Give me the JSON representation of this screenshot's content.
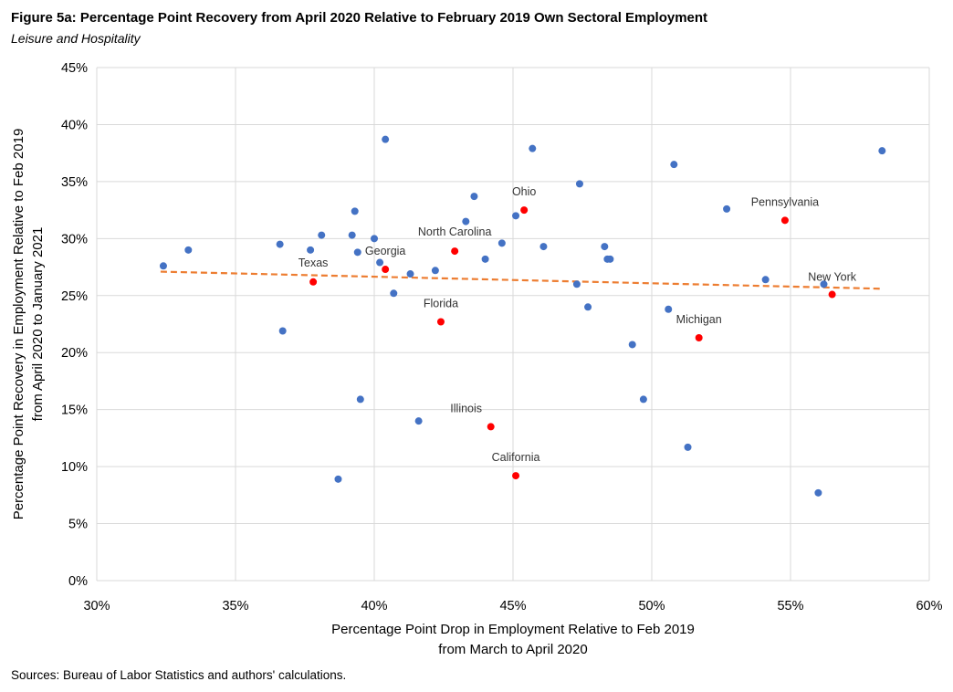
{
  "title": "Figure 5a: Percentage Point Recovery from April 2020 Relative to February 2019 Own Sectoral Employment",
  "subtitle": "Leisure and Hospitality",
  "source": "Sources: Bureau of Labor Statistics and authors' calculations.",
  "chart_data": {
    "type": "scatter",
    "xlabel": [
      "Percentage Point Drop in Employment Relative to Feb 2019",
      "from March to April 2020"
    ],
    "ylabel": [
      "Percentage Point Recovery in Employment Relative to Feb 2019",
      "from April 2020 to January 2021"
    ],
    "xlim": [
      0.3,
      0.6
    ],
    "ylim": [
      0.0,
      0.45
    ],
    "x_ticks": [
      0.3,
      0.35,
      0.4,
      0.45,
      0.5,
      0.55,
      0.6
    ],
    "x_tick_labels": [
      "30%",
      "35%",
      "40%",
      "45%",
      "50%",
      "55%",
      "60%"
    ],
    "y_ticks": [
      0.0,
      0.05,
      0.1,
      0.15,
      0.2,
      0.25,
      0.3,
      0.35,
      0.4,
      0.45
    ],
    "y_tick_labels": [
      "0%",
      "5%",
      "10%",
      "15%",
      "20%",
      "25%",
      "30%",
      "35%",
      "40%",
      "45%"
    ],
    "grid": true,
    "colors": {
      "other": "#4472C4",
      "highlight": "#FF0000",
      "trend": "#ED7D31",
      "grid": "#D9D9D9"
    },
    "other_states": [
      {
        "x": 0.324,
        "y": 0.276
      },
      {
        "x": 0.333,
        "y": 0.29
      },
      {
        "x": 0.366,
        "y": 0.295
      },
      {
        "x": 0.367,
        "y": 0.219
      },
      {
        "x": 0.377,
        "y": 0.29
      },
      {
        "x": 0.381,
        "y": 0.303
      },
      {
        "x": 0.387,
        "y": 0.089
      },
      {
        "x": 0.392,
        "y": 0.303
      },
      {
        "x": 0.393,
        "y": 0.324
      },
      {
        "x": 0.394,
        "y": 0.288
      },
      {
        "x": 0.395,
        "y": 0.159
      },
      {
        "x": 0.4,
        "y": 0.3
      },
      {
        "x": 0.402,
        "y": 0.279
      },
      {
        "x": 0.404,
        "y": 0.387
      },
      {
        "x": 0.407,
        "y": 0.252
      },
      {
        "x": 0.413,
        "y": 0.269
      },
      {
        "x": 0.416,
        "y": 0.14
      },
      {
        "x": 0.422,
        "y": 0.272
      },
      {
        "x": 0.433,
        "y": 0.315
      },
      {
        "x": 0.436,
        "y": 0.337
      },
      {
        "x": 0.44,
        "y": 0.282
      },
      {
        "x": 0.446,
        "y": 0.296
      },
      {
        "x": 0.451,
        "y": 0.32
      },
      {
        "x": 0.457,
        "y": 0.379
      },
      {
        "x": 0.461,
        "y": 0.293
      },
      {
        "x": 0.473,
        "y": 0.26
      },
      {
        "x": 0.474,
        "y": 0.348
      },
      {
        "x": 0.477,
        "y": 0.24
      },
      {
        "x": 0.483,
        "y": 0.293
      },
      {
        "x": 0.484,
        "y": 0.282
      },
      {
        "x": 0.485,
        "y": 0.282
      },
      {
        "x": 0.493,
        "y": 0.207
      },
      {
        "x": 0.497,
        "y": 0.159
      },
      {
        "x": 0.506,
        "y": 0.238
      },
      {
        "x": 0.508,
        "y": 0.365
      },
      {
        "x": 0.513,
        "y": 0.117
      },
      {
        "x": 0.527,
        "y": 0.326
      },
      {
        "x": 0.541,
        "y": 0.264
      },
      {
        "x": 0.56,
        "y": 0.077
      },
      {
        "x": 0.562,
        "y": 0.26
      },
      {
        "x": 0.583,
        "y": 0.377
      }
    ],
    "highlighted_states": [
      {
        "name": "Texas",
        "x": 0.378,
        "y": 0.262
      },
      {
        "name": "Georgia",
        "x": 0.404,
        "y": 0.273
      },
      {
        "name": "North Carolina",
        "x": 0.429,
        "y": 0.289
      },
      {
        "name": "Florida",
        "x": 0.424,
        "y": 0.227
      },
      {
        "name": "Illinois",
        "x": 0.442,
        "y": 0.135
      },
      {
        "name": "California",
        "x": 0.451,
        "y": 0.092
      },
      {
        "name": "Ohio",
        "x": 0.454,
        "y": 0.325
      },
      {
        "name": "Michigan",
        "x": 0.517,
        "y": 0.213
      },
      {
        "name": "Pennsylvania",
        "x": 0.548,
        "y": 0.316
      },
      {
        "name": "New York",
        "x": 0.565,
        "y": 0.251
      }
    ],
    "trendline": {
      "x": [
        0.323,
        0.583
      ],
      "y": [
        0.271,
        0.256
      ]
    }
  }
}
